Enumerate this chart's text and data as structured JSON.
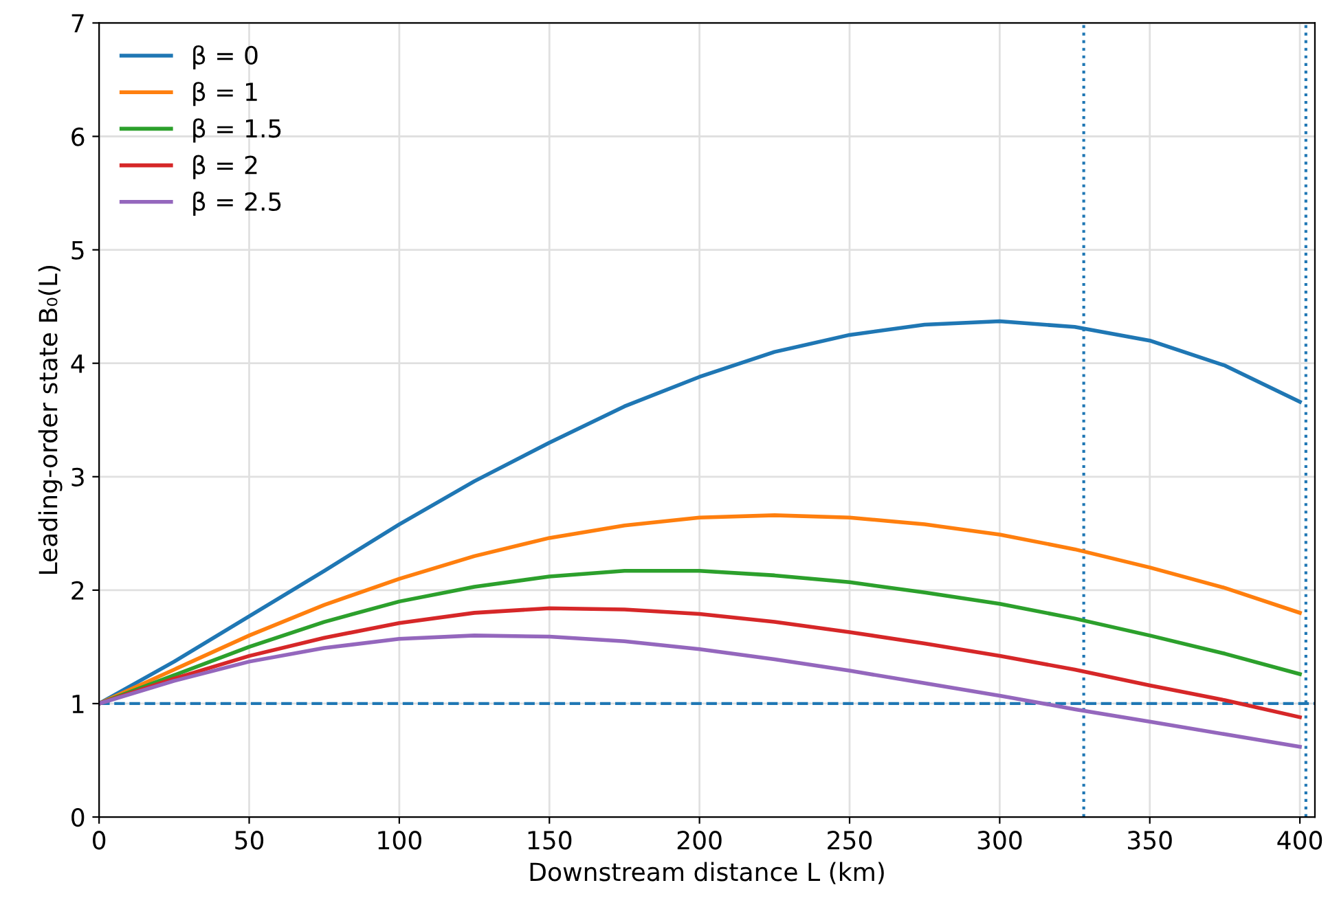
{
  "chart_data": {
    "type": "line",
    "xlabel": "Downstream distance L (km)",
    "ylabel": "Leading-order state B₀(L)",
    "x": [
      0,
      25,
      50,
      75,
      100,
      125,
      150,
      175,
      200,
      225,
      250,
      275,
      300,
      325,
      350,
      375,
      400
    ],
    "series": [
      {
        "name": "β = 0",
        "color": "#1f77b4",
        "values": [
          1,
          1.37,
          1.77,
          2.17,
          2.58,
          2.96,
          3.3,
          3.62,
          3.88,
          4.1,
          4.25,
          4.34,
          4.37,
          4.32,
          4.2,
          3.98,
          3.66
        ]
      },
      {
        "name": "β = 1",
        "color": "#ff7f0e",
        "values": [
          1,
          1.3,
          1.6,
          1.87,
          2.1,
          2.3,
          2.46,
          2.57,
          2.64,
          2.66,
          2.64,
          2.58,
          2.49,
          2.36,
          2.2,
          2.02,
          1.8
        ]
      },
      {
        "name": "β = 1.5",
        "color": "#2ca02c",
        "values": [
          1,
          1.25,
          1.5,
          1.72,
          1.9,
          2.03,
          2.12,
          2.17,
          2.17,
          2.13,
          2.07,
          1.98,
          1.88,
          1.75,
          1.6,
          1.44,
          1.26
        ]
      },
      {
        "name": "β = 2",
        "color": "#d62728",
        "values": [
          1,
          1.22,
          1.42,
          1.58,
          1.71,
          1.8,
          1.84,
          1.83,
          1.79,
          1.72,
          1.63,
          1.53,
          1.42,
          1.3,
          1.16,
          1.03,
          0.88
        ]
      },
      {
        "name": "β = 2.5",
        "color": "#9467bd",
        "values": [
          1,
          1.2,
          1.37,
          1.49,
          1.57,
          1.6,
          1.59,
          1.55,
          1.48,
          1.39,
          1.29,
          1.18,
          1.07,
          0.95,
          0.84,
          0.73,
          0.62
        ]
      }
    ],
    "ref_lines": [
      {
        "axis": "y",
        "value": 1,
        "color": "#1f77b4",
        "line_style": "dashed"
      },
      {
        "axis": "x",
        "value": 328,
        "color": "#1f77b4",
        "line_style": "dotted"
      },
      {
        "axis": "x",
        "value": 402,
        "color": "#1f77b4",
        "line_style": "dotted"
      }
    ],
    "xlim": [
      0,
      405
    ],
    "ylim": [
      0,
      7
    ],
    "xticks": [
      0,
      50,
      100,
      150,
      200,
      250,
      300,
      350,
      400
    ],
    "yticks": [
      0,
      1,
      2,
      3,
      4,
      5,
      6,
      7
    ],
    "grid": true,
    "legend": "top left",
    "marker": "none",
    "line_style": "solid"
  }
}
